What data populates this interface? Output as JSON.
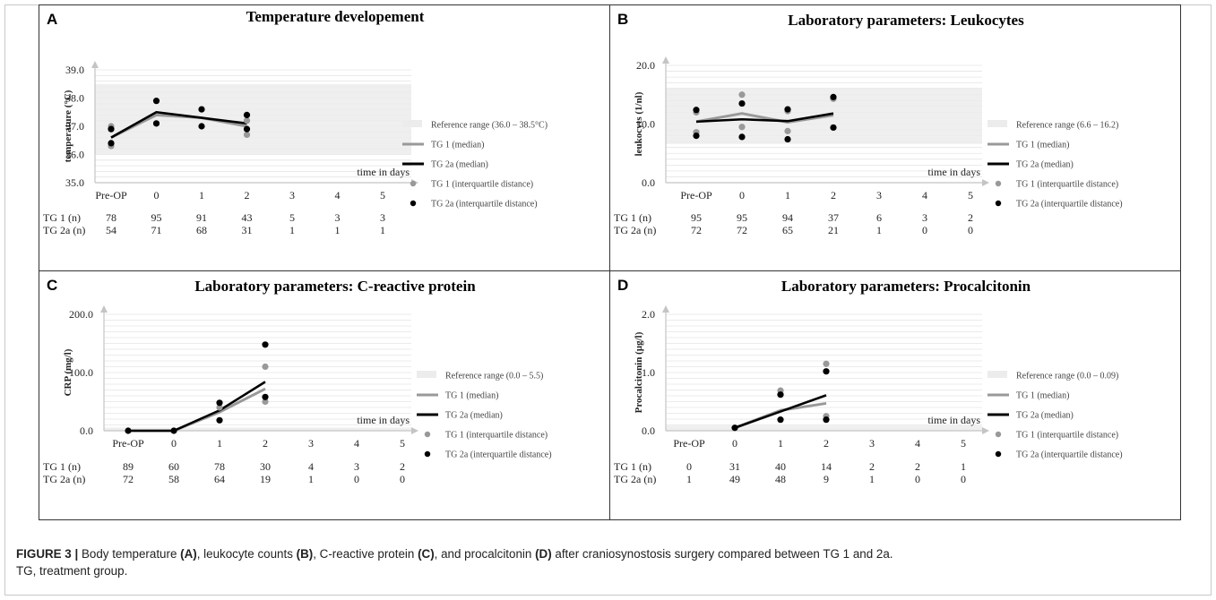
{
  "caption": {
    "lead": "FIGURE 3 | ",
    "text1": "Body temperature ",
    "refA": "(A)",
    "text2": ", leukocyte counts ",
    "refB": "(B)",
    "text3": ", C-reactive protein ",
    "refC": "(C)",
    "text4": ", and procalcitonin ",
    "refD": "(D)",
    "text5": " after craniosynostosis surgery compared between TG 1 and 2a.",
    "line2": "TG, treatment group."
  },
  "colors": {
    "tg1": "#999999",
    "tg2a": "#000000",
    "reference": "#ececec",
    "grid": "#e4e4e4",
    "axis": "#c4c4c4"
  },
  "count_row_labels": [
    "TG 1 (n)",
    "TG 2a (n)"
  ],
  "chart_data": [
    {
      "id": "A",
      "type": "line",
      "panel_letter": "A",
      "title": "Temperature developement",
      "ylabel": "temperature  (°C)",
      "xlabel": "time in days",
      "x_categories": [
        "Pre-OP",
        "0",
        "1",
        "2",
        "3",
        "4",
        "5"
      ],
      "ylim": [
        35.0,
        39.0
      ],
      "y_ticks": [
        "35.0",
        "36.0",
        "37.0",
        "38.0",
        "39.0"
      ],
      "reference_range": [
        36.0,
        38.5
      ],
      "series": [
        {
          "name": "TG 1 (median)",
          "kind": "line",
          "points": [
            {
              "x": "Pre-OP",
              "y": 36.6
            },
            {
              "x": "0",
              "y": 37.4
            },
            {
              "x": "1",
              "y": 37.3
            },
            {
              "x": "2",
              "y": 37.0
            }
          ]
        },
        {
          "name": "TG 2a (median)",
          "kind": "line",
          "points": [
            {
              "x": "Pre-OP",
              "y": 36.6
            },
            {
              "x": "0",
              "y": 37.5
            },
            {
              "x": "1",
              "y": 37.3
            },
            {
              "x": "2",
              "y": 37.1
            }
          ]
        },
        {
          "name": "TG 1 (interquartile distance)",
          "kind": "points",
          "points": [
            {
              "x": "Pre-OP",
              "y": 37.0
            },
            {
              "x": "Pre-OP",
              "y": 36.3
            },
            {
              "x": "2",
              "y": 36.7
            },
            {
              "x": "2",
              "y": 37.2
            }
          ]
        },
        {
          "name": "TG 2a (interquartile distance)",
          "kind": "points",
          "points": [
            {
              "x": "Pre-OP",
              "y": 36.9
            },
            {
              "x": "Pre-OP",
              "y": 36.4
            },
            {
              "x": "0",
              "y": 37.9
            },
            {
              "x": "0",
              "y": 37.1
            },
            {
              "x": "1",
              "y": 37.6
            },
            {
              "x": "1",
              "y": 37.0
            },
            {
              "x": "2",
              "y": 37.4
            },
            {
              "x": "2",
              "y": 36.9
            }
          ]
        }
      ],
      "legend": [
        "Reference range (36.0 – 38.5°C)",
        "TG 1 (median)",
        "TG 2a (median)",
        "TG 1 (interquartile distance)",
        "TG 2a (interquartile distance)"
      ],
      "counts": {
        "tg1": [
          "78",
          "95",
          "91",
          "43",
          "5",
          "3",
          "3"
        ],
        "tg2a": [
          "54",
          "71",
          "68",
          "31",
          "1",
          "1",
          "1"
        ]
      }
    },
    {
      "id": "B",
      "type": "line",
      "panel_letter": "B",
      "title": "Laboratory parameters: Leukocytes",
      "ylabel": "leukocyts (1/nl)",
      "xlabel": "time in days",
      "x_categories": [
        "Pre-OP",
        "0",
        "1",
        "2",
        "3",
        "4",
        "5"
      ],
      "ylim": [
        0.0,
        20.0
      ],
      "y_ticks": [
        "0.0",
        "10.0",
        "20.0"
      ],
      "reference_range": [
        6.6,
        16.2
      ],
      "series": [
        {
          "name": "TG 1 (median)",
          "kind": "line",
          "points": [
            {
              "x": "Pre-OP",
              "y": 10.4
            },
            {
              "x": "0",
              "y": 11.8
            },
            {
              "x": "1",
              "y": 10.3
            },
            {
              "x": "2",
              "y": 11.5
            }
          ]
        },
        {
          "name": "TG 2a (median)",
          "kind": "line",
          "points": [
            {
              "x": "Pre-OP",
              "y": 10.4
            },
            {
              "x": "0",
              "y": 10.8
            },
            {
              "x": "1",
              "y": 10.5
            },
            {
              "x": "2",
              "y": 11.8
            }
          ]
        },
        {
          "name": "TG 1 (interquartile distance)",
          "kind": "points",
          "points": [
            {
              "x": "Pre-OP",
              "y": 12.0
            },
            {
              "x": "Pre-OP",
              "y": 8.6
            },
            {
              "x": "0",
              "y": 15.0
            },
            {
              "x": "0",
              "y": 9.5
            },
            {
              "x": "1",
              "y": 12.2
            },
            {
              "x": "1",
              "y": 8.8
            },
            {
              "x": "2",
              "y": 14.3
            }
          ]
        },
        {
          "name": "TG 2a (interquartile distance)",
          "kind": "points",
          "points": [
            {
              "x": "Pre-OP",
              "y": 12.4
            },
            {
              "x": "Pre-OP",
              "y": 8.0
            },
            {
              "x": "0",
              "y": 13.5
            },
            {
              "x": "0",
              "y": 7.8
            },
            {
              "x": "1",
              "y": 12.5
            },
            {
              "x": "1",
              "y": 7.4
            },
            {
              "x": "2",
              "y": 14.6
            },
            {
              "x": "2",
              "y": 9.4
            }
          ]
        }
      ],
      "legend": [
        "Reference range (6.6 – 16.2)",
        "TG 1 (median)",
        "TG 2a (median)",
        "TG 1 (interquartile distance)",
        "TG 2a (interquartile distance)"
      ],
      "counts": {
        "tg1": [
          "95",
          "95",
          "94",
          "37",
          "6",
          "3",
          "2"
        ],
        "tg2a": [
          "72",
          "72",
          "65",
          "21",
          "1",
          "0",
          "0"
        ]
      }
    },
    {
      "id": "C",
      "type": "line",
      "panel_letter": "C",
      "title": "Laboratory parameters: C-reactive protein",
      "ylabel": "CRP (mg/l)",
      "xlabel": "time in days",
      "x_categories": [
        "Pre-OP",
        "0",
        "1",
        "2",
        "3",
        "4",
        "5"
      ],
      "ylim": [
        0.0,
        200.0
      ],
      "y_ticks": [
        "0.0",
        "100.0",
        "200.0"
      ],
      "reference_range": [
        0.0,
        5.5
      ],
      "series": [
        {
          "name": "TG 1 (median)",
          "kind": "line",
          "points": [
            {
              "x": "Pre-OP",
              "y": 0.0
            },
            {
              "x": "0",
              "y": 0.0
            },
            {
              "x": "1",
              "y": 32
            },
            {
              "x": "2",
              "y": 72
            }
          ]
        },
        {
          "name": "TG 2a (median)",
          "kind": "line",
          "points": [
            {
              "x": "Pre-OP",
              "y": 0.0
            },
            {
              "x": "0",
              "y": 0.0
            },
            {
              "x": "1",
              "y": 35
            },
            {
              "x": "2",
              "y": 84
            }
          ]
        },
        {
          "name": "TG 1 (interquartile distance)",
          "kind": "points",
          "points": [
            {
              "x": "1",
              "y": 40
            },
            {
              "x": "2",
              "y": 110
            },
            {
              "x": "2",
              "y": 50
            }
          ]
        },
        {
          "name": "TG 2a (interquartile distance)",
          "kind": "points",
          "points": [
            {
              "x": "Pre-OP",
              "y": 0.0
            },
            {
              "x": "0",
              "y": 0.0
            },
            {
              "x": "1",
              "y": 48
            },
            {
              "x": "1",
              "y": 18
            },
            {
              "x": "2",
              "y": 148
            },
            {
              "x": "2",
              "y": 58
            }
          ]
        }
      ],
      "legend": [
        "Reference range (0.0 – 5.5)",
        "TG 1 (median)",
        "TG 2a (median)",
        "TG 1 (interquartile distance)",
        "TG 2a (interquartile distance)"
      ],
      "counts": {
        "tg1": [
          "89",
          "60",
          "78",
          "30",
          "4",
          "3",
          "2"
        ],
        "tg2a": [
          "72",
          "58",
          "64",
          "19",
          "1",
          "0",
          "0"
        ]
      }
    },
    {
      "id": "D",
      "type": "line",
      "panel_letter": "D",
      "title": "Laboratory parameters: Procalcitonin",
      "ylabel": "Procalcitonin (µg/l)",
      "xlabel": "time in days",
      "x_categories": [
        "Pre-OP",
        "0",
        "1",
        "2",
        "3",
        "4",
        "5"
      ],
      "ylim": [
        0.0,
        2.0
      ],
      "y_ticks": [
        "0.0",
        "1.0",
        "2.0"
      ],
      "reference_range": [
        0.0,
        0.09
      ],
      "series": [
        {
          "name": "TG 1 (median)",
          "kind": "line",
          "points": [
            {
              "x": "0",
              "y": 0.05
            },
            {
              "x": "1",
              "y": 0.35
            },
            {
              "x": "2",
              "y": 0.47
            }
          ]
        },
        {
          "name": "TG 2a (median)",
          "kind": "line",
          "points": [
            {
              "x": "0",
              "y": 0.05
            },
            {
              "x": "1",
              "y": 0.33
            },
            {
              "x": "2",
              "y": 0.61
            }
          ]
        },
        {
          "name": "TG 1 (interquartile distance)",
          "kind": "points",
          "points": [
            {
              "x": "1",
              "y": 0.69
            },
            {
              "x": "2",
              "y": 1.15
            },
            {
              "x": "2",
              "y": 0.25
            }
          ]
        },
        {
          "name": "TG 2a (interquartile distance)",
          "kind": "points",
          "points": [
            {
              "x": "0",
              "y": 0.05
            },
            {
              "x": "1",
              "y": 0.62
            },
            {
              "x": "1",
              "y": 0.19
            },
            {
              "x": "2",
              "y": 1.02
            },
            {
              "x": "2",
              "y": 0.19
            }
          ]
        }
      ],
      "legend": [
        "Reference range (0.0 – 0.09)",
        "TG 1 (median)",
        "TG 2a (median)",
        "TG 1 (interquartile distance)",
        "TG 2a (interquartile distance)"
      ],
      "counts": {
        "tg1": [
          "0",
          "31",
          "40",
          "14",
          "2",
          "2",
          "1"
        ],
        "tg2a": [
          "1",
          "49",
          "48",
          "9",
          "1",
          "0",
          "0"
        ]
      }
    }
  ]
}
